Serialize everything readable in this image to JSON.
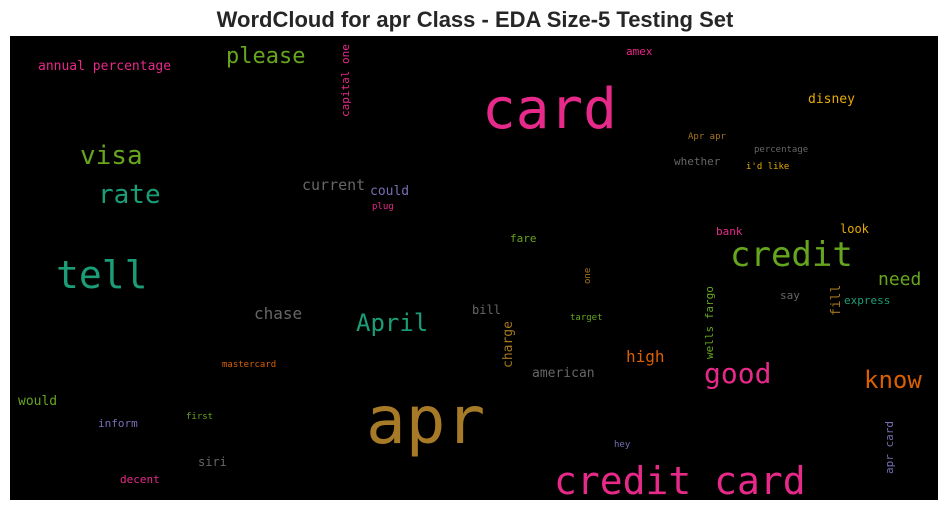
{
  "title": "WordCloud for apr Class - EDA Size-5 Testing Set",
  "chart_data": {
    "type": "wordcloud",
    "background": "#000000",
    "words": [
      {
        "text": "apr",
        "weight": 1.0,
        "color": "#a67a26"
      },
      {
        "text": "card",
        "weight": 0.82,
        "color": "#e7298a"
      },
      {
        "text": "credit card",
        "weight": 0.62,
        "color": "#e7298a"
      },
      {
        "text": "tell",
        "weight": 0.55,
        "color": "#1b9e77"
      },
      {
        "text": "credit",
        "weight": 0.5,
        "color": "#66a61e"
      },
      {
        "text": "good",
        "weight": 0.44,
        "color": "#e7298a"
      },
      {
        "text": "April",
        "weight": 0.38,
        "color": "#1b9e77"
      },
      {
        "text": "know",
        "weight": 0.36,
        "color": "#d95f02"
      },
      {
        "text": "visa",
        "weight": 0.36,
        "color": "#66a61e"
      },
      {
        "text": "rate",
        "weight": 0.36,
        "color": "#1b9e77"
      },
      {
        "text": "please",
        "weight": 0.32,
        "color": "#66a61e"
      },
      {
        "text": "need",
        "weight": 0.26,
        "color": "#66a61e"
      },
      {
        "text": "chase",
        "weight": 0.24,
        "color": "#666666"
      },
      {
        "text": "current",
        "weight": 0.24,
        "color": "#666666"
      },
      {
        "text": "high",
        "weight": 0.24,
        "color": "#d95f02"
      },
      {
        "text": "disney",
        "weight": 0.2,
        "color": "#e6ab02"
      },
      {
        "text": "annual percentage",
        "weight": 0.2,
        "color": "#e7298a"
      },
      {
        "text": "could",
        "weight": 0.2,
        "color": "#7570b3"
      },
      {
        "text": "american",
        "weight": 0.2,
        "color": "#666666"
      },
      {
        "text": "would",
        "weight": 0.2,
        "color": "#66a61e"
      },
      {
        "text": "charge",
        "weight": 0.19,
        "color": "#a6761d"
      },
      {
        "text": "wells fargo",
        "weight": 0.17,
        "color": "#66a61e"
      },
      {
        "text": "fill",
        "weight": 0.17,
        "color": "#a6761d"
      },
      {
        "text": "capital one",
        "weight": 0.17,
        "color": "#e7298a"
      },
      {
        "text": "whether",
        "weight": 0.17,
        "color": "#666666"
      },
      {
        "text": "bill",
        "weight": 0.17,
        "color": "#666666"
      },
      {
        "text": "inform",
        "weight": 0.17,
        "color": "#7570b3"
      },
      {
        "text": "siri",
        "weight": 0.17,
        "color": "#666666"
      },
      {
        "text": "say",
        "weight": 0.17,
        "color": "#666666"
      },
      {
        "text": "look",
        "weight": 0.17,
        "color": "#e6ab02"
      },
      {
        "text": "express",
        "weight": 0.17,
        "color": "#1b9e77"
      },
      {
        "text": "apr card",
        "weight": 0.17,
        "color": "#7570b3"
      },
      {
        "text": "fare",
        "weight": 0.15,
        "color": "#66a61e"
      },
      {
        "text": "bank",
        "weight": 0.15,
        "color": "#e7298a"
      },
      {
        "text": "decent",
        "weight": 0.15,
        "color": "#e7298a"
      },
      {
        "text": "amex",
        "weight": 0.15,
        "color": "#e7298a"
      },
      {
        "text": "percentage",
        "weight": 0.12,
        "color": "#666666"
      },
      {
        "text": "Apr apr",
        "weight": 0.12,
        "color": "#a6761d"
      },
      {
        "text": "i'd like",
        "weight": 0.12,
        "color": "#e6ab02"
      },
      {
        "text": "plug",
        "weight": 0.12,
        "color": "#e7298a"
      },
      {
        "text": "mastercard",
        "weight": 0.12,
        "color": "#d95f02"
      },
      {
        "text": "first",
        "weight": 0.12,
        "color": "#66a61e"
      },
      {
        "text": "target",
        "weight": 0.12,
        "color": "#66a61e"
      },
      {
        "text": "one",
        "weight": 0.12,
        "color": "#a6761d"
      },
      {
        "text": "hey",
        "weight": 0.12,
        "color": "#7570b3"
      }
    ]
  }
}
